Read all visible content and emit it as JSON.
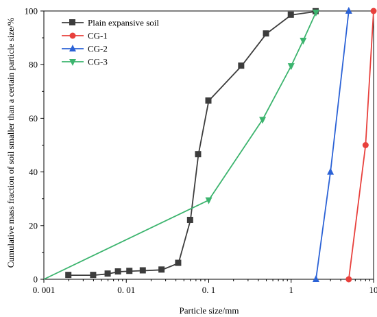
{
  "chart_data": {
    "type": "line",
    "xscale": "log",
    "xlim": [
      0.001,
      10
    ],
    "ylim": [
      0,
      100
    ],
    "xlabel": "Particle size/mm",
    "ylabel": "Cumulative mass fraction of soil smaller than a certain particle size/%",
    "x_tick_values": [
      0.001,
      0.01,
      0.1,
      1,
      10
    ],
    "x_tick_labels": [
      "0. 001",
      "0. 01",
      "0. 1",
      "1",
      "10"
    ],
    "y_ticks": [
      0,
      20,
      40,
      60,
      80,
      100
    ],
    "grid": false,
    "legend_position": "top-left",
    "series": [
      {
        "name": "Plain expansive soil",
        "color": "#3c3c3c",
        "marker": "square",
        "x": [
          0.002,
          0.004,
          0.006,
          0.008,
          0.011,
          0.016,
          0.027,
          0.043,
          0.06,
          0.075,
          0.1,
          0.25,
          0.5,
          1,
          2
        ],
        "y": [
          1.5,
          1.5,
          2,
          2.8,
          3,
          3.2,
          3.5,
          6,
          22,
          46.5,
          66.5,
          79.5,
          91.5,
          98.5,
          99.8
        ]
      },
      {
        "name": "CG-1",
        "color": "#e8403c",
        "marker": "circle",
        "x": [
          5,
          8,
          10
        ],
        "y": [
          0,
          50,
          100
        ]
      },
      {
        "name": "CG-2",
        "color": "#2b62d6",
        "marker": "triangle-up",
        "x": [
          2,
          3,
          5
        ],
        "y": [
          0,
          40,
          100
        ]
      },
      {
        "name": "CG-3",
        "color": "#3cb46e",
        "marker": "triangle-down",
        "x": [
          0.001,
          0.1,
          0.45,
          1,
          1.4,
          2
        ],
        "y": [
          0,
          29.5,
          59.5,
          79.5,
          89,
          99.5
        ]
      }
    ]
  }
}
